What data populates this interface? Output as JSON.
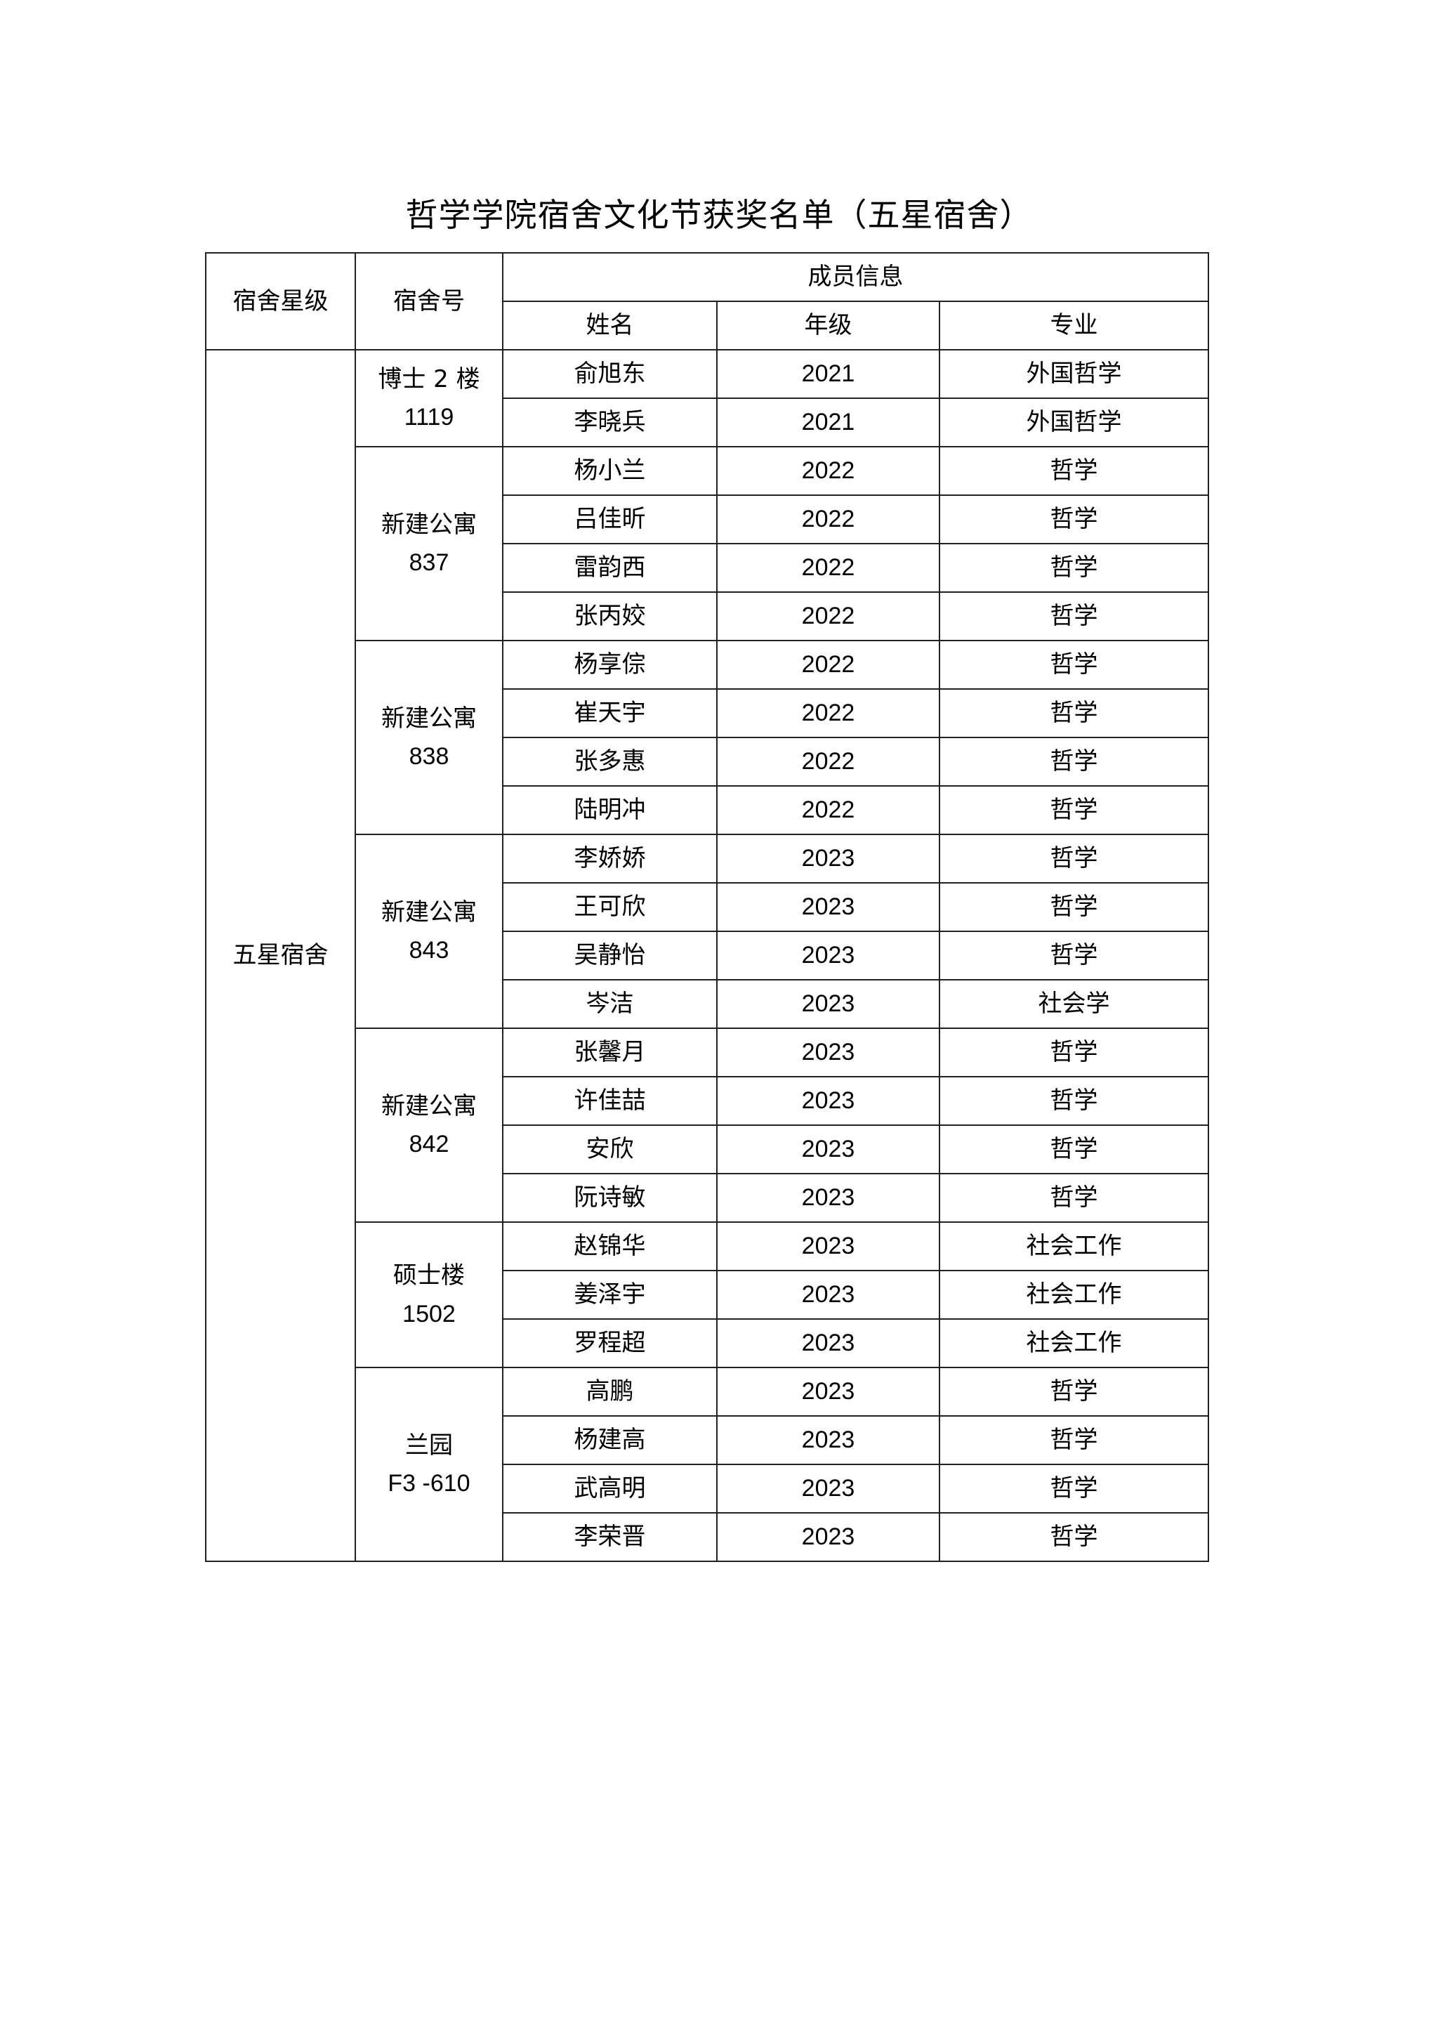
{
  "title": "哲学学院宿舍文化节获奖名单（五星宿舍）",
  "headers": {
    "star": "宿舍星级",
    "room": "宿舍号",
    "members": "成员信息",
    "name": "姓名",
    "grade": "年级",
    "major": "专业"
  },
  "star_level": "五星宿舍",
  "rooms": [
    {
      "building": "博士 2 楼",
      "number": "1119",
      "members": [
        {
          "name": "俞旭东",
          "grade": "2021",
          "major": "外国哲学"
        },
        {
          "name": "李晓兵",
          "grade": "2021",
          "major": "外国哲学"
        }
      ]
    },
    {
      "building": "新建公寓",
      "number": "837",
      "members": [
        {
          "name": "杨小兰",
          "grade": "2022",
          "major": "哲学"
        },
        {
          "name": "吕佳昕",
          "grade": "2022",
          "major": "哲学"
        },
        {
          "name": "雷韵西",
          "grade": "2022",
          "major": "哲学"
        },
        {
          "name": "张丙姣",
          "grade": "2022",
          "major": "哲学"
        }
      ]
    },
    {
      "building": "新建公寓",
      "number": "838",
      "members": [
        {
          "name": "杨享倧",
          "grade": "2022",
          "major": "哲学"
        },
        {
          "name": "崔天宇",
          "grade": "2022",
          "major": "哲学"
        },
        {
          "name": "张多惠",
          "grade": "2022",
          "major": "哲学"
        },
        {
          "name": "陆明冲",
          "grade": "2022",
          "major": "哲学"
        }
      ]
    },
    {
      "building": "新建公寓",
      "number": "843",
      "members": [
        {
          "name": "李娇娇",
          "grade": "2023",
          "major": "哲学"
        },
        {
          "name": "王可欣",
          "grade": "2023",
          "major": "哲学"
        },
        {
          "name": "吴静怡",
          "grade": "2023",
          "major": "哲学"
        },
        {
          "name": "岑洁",
          "grade": "2023",
          "major": "社会学"
        }
      ]
    },
    {
      "building": "新建公寓",
      "number": "842",
      "members": [
        {
          "name": "张馨月",
          "grade": "2023",
          "major": "哲学"
        },
        {
          "name": "许佳喆",
          "grade": "2023",
          "major": "哲学"
        },
        {
          "name": "安欣",
          "grade": "2023",
          "major": "哲学"
        },
        {
          "name": "阮诗敏",
          "grade": "2023",
          "major": "哲学"
        }
      ]
    },
    {
      "building": "硕士楼",
      "number": "1502",
      "members": [
        {
          "name": "赵锦华",
          "grade": "2023",
          "major": "社会工作"
        },
        {
          "name": "姜泽宇",
          "grade": "2023",
          "major": "社会工作"
        },
        {
          "name": "罗程超",
          "grade": "2023",
          "major": "社会工作"
        }
      ]
    },
    {
      "building": "兰园",
      "number": "F3 -610",
      "members": [
        {
          "name": "高鹏",
          "grade": "2023",
          "major": "哲学"
        },
        {
          "name": "杨建高",
          "grade": "2023",
          "major": "哲学"
        },
        {
          "name": "武高明",
          "grade": "2023",
          "major": "哲学"
        },
        {
          "name": "李荣晋",
          "grade": "2023",
          "major": "哲学"
        }
      ]
    }
  ]
}
